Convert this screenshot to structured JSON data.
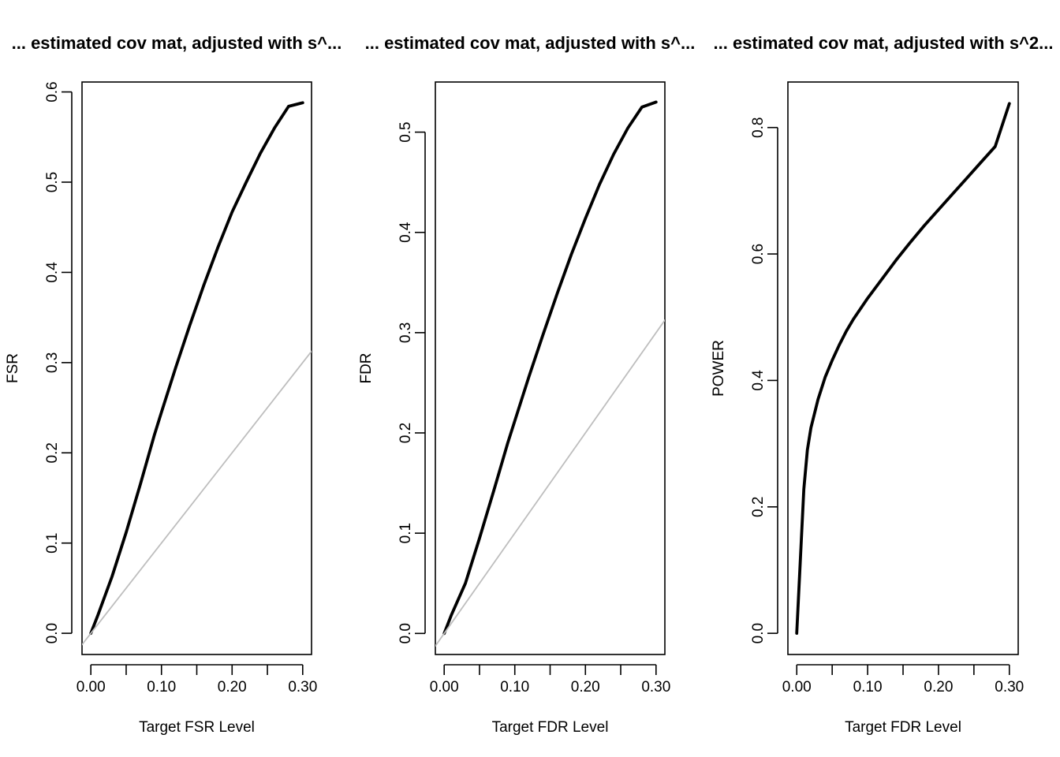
{
  "chart_data": [
    {
      "type": "line",
      "title": "... estimated cov mat, adjusted with s^...",
      "xlabel": "Target FSR Level",
      "ylabel": "FSR",
      "xlim": [
        -0.0125,
        0.3125
      ],
      "ylim": [
        -0.0235,
        0.611
      ],
      "xticks": [
        0.0,
        0.05,
        0.1,
        0.15,
        0.2,
        0.25,
        0.3
      ],
      "xtick_labels": [
        "0.00",
        "0.10",
        "0.20",
        "0.30"
      ],
      "xtick_label_values": [
        0.0,
        0.1,
        0.2,
        0.3
      ],
      "yticks": [
        0.0,
        0.1,
        0.2,
        0.3,
        0.4,
        0.5,
        0.6
      ],
      "ytick_labels": [
        "0.0",
        "0.1",
        "0.2",
        "0.3",
        "0.4",
        "0.5",
        "0.6"
      ],
      "grid": false,
      "series": [
        {
          "color": "#000000",
          "x": [
            0.0,
            0.01,
            0.03,
            0.05,
            0.07,
            0.09,
            0.1,
            0.12,
            0.14,
            0.16,
            0.18,
            0.2,
            0.22,
            0.24,
            0.26,
            0.28,
            0.3
          ],
          "y": [
            0.0,
            0.02,
            0.063,
            0.112,
            0.165,
            0.22,
            0.245,
            0.294,
            0.341,
            0.386,
            0.428,
            0.467,
            0.5,
            0.532,
            0.56,
            0.584,
            0.588
          ]
        },
        {
          "color": "#bebebe",
          "x": [
            -0.0125,
            0.3125
          ],
          "y": [
            -0.0125,
            0.3125
          ]
        }
      ]
    },
    {
      "type": "line",
      "title": "... estimated cov mat, adjusted with s^...",
      "xlabel": "Target FDR Level",
      "ylabel": "FDR",
      "xlim": [
        -0.0125,
        0.3125
      ],
      "ylim": [
        -0.021,
        0.55
      ],
      "xticks": [
        0.0,
        0.05,
        0.1,
        0.15,
        0.2,
        0.25,
        0.3
      ],
      "xtick_labels": [
        "0.00",
        "0.10",
        "0.20",
        "0.30"
      ],
      "xtick_label_values": [
        0.0,
        0.1,
        0.2,
        0.3
      ],
      "yticks": [
        0.0,
        0.1,
        0.2,
        0.3,
        0.4,
        0.5
      ],
      "ytick_labels": [
        "0.0",
        "0.1",
        "0.2",
        "0.3",
        "0.4",
        "0.5"
      ],
      "grid": false,
      "series": [
        {
          "color": "#000000",
          "x": [
            0.0,
            0.01,
            0.03,
            0.05,
            0.07,
            0.09,
            0.1,
            0.12,
            0.14,
            0.16,
            0.18,
            0.2,
            0.22,
            0.24,
            0.26,
            0.28,
            0.3
          ],
          "y": [
            0.0,
            0.018,
            0.05,
            0.095,
            0.142,
            0.19,
            0.212,
            0.256,
            0.298,
            0.339,
            0.378,
            0.414,
            0.448,
            0.478,
            0.504,
            0.525,
            0.53
          ]
        },
        {
          "color": "#bebebe",
          "x": [
            -0.0125,
            0.3125
          ],
          "y": [
            -0.0125,
            0.3125
          ]
        }
      ]
    },
    {
      "type": "line",
      "title": "... estimated cov mat, adjusted with s^2...",
      "xlabel": "Target FDR Level",
      "ylabel": "POWER",
      "xlim": [
        -0.0125,
        0.3125
      ],
      "ylim": [
        -0.0335,
        0.872
      ],
      "xticks": [
        0.0,
        0.05,
        0.1,
        0.15,
        0.2,
        0.25,
        0.3
      ],
      "xtick_labels": [
        "0.00",
        "0.10",
        "0.20",
        "0.30"
      ],
      "xtick_label_values": [
        0.0,
        0.1,
        0.2,
        0.3
      ],
      "yticks": [
        0.0,
        0.2,
        0.4,
        0.6,
        0.8
      ],
      "ytick_labels": [
        "0.0",
        "0.2",
        "0.4",
        "0.6",
        "0.8"
      ],
      "grid": false,
      "series": [
        {
          "color": "#000000",
          "x": [
            0.0,
            0.01,
            0.015,
            0.02,
            0.03,
            0.04,
            0.05,
            0.06,
            0.07,
            0.08,
            0.1,
            0.12,
            0.14,
            0.16,
            0.18,
            0.2,
            0.22,
            0.24,
            0.26,
            0.28,
            0.3
          ],
          "y": [
            0.0,
            0.228,
            0.29,
            0.325,
            0.37,
            0.405,
            0.432,
            0.456,
            0.478,
            0.497,
            0.53,
            0.56,
            0.59,
            0.618,
            0.645,
            0.67,
            0.695,
            0.72,
            0.745,
            0.77,
            0.838
          ]
        }
      ]
    }
  ]
}
